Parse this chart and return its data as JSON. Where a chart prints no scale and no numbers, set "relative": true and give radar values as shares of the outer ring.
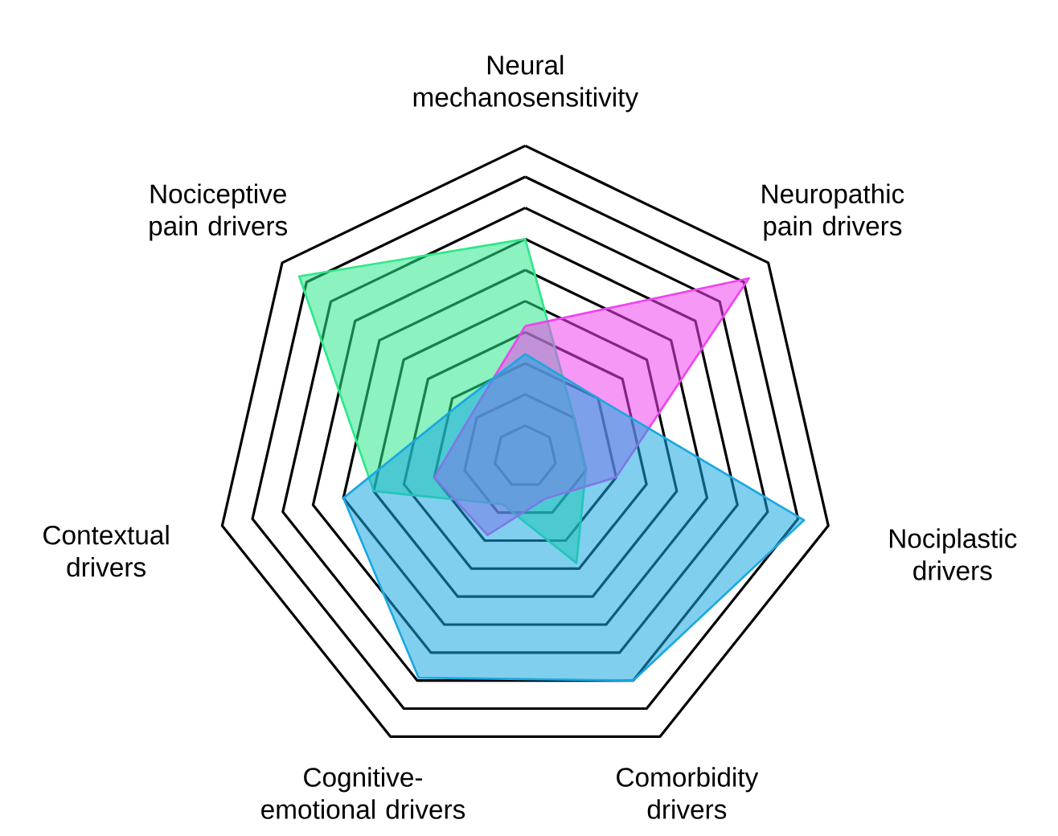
{
  "chart_data": {
    "type": "radar",
    "relative": true,
    "grid": true,
    "categories": [
      "Neural mechanosensitivity",
      "Neuropathic pain drivers",
      "Nociplastic drivers",
      "Comorbidity drivers",
      "Cognitive-emotional drivers",
      "Contextual drivers",
      "Nociceptive pain drivers"
    ],
    "series": [
      {
        "color": "#2ee88a",
        "values": [
          0.7,
          0.2,
          0.2,
          0.38,
          0.17,
          0.5,
          0.93
        ]
      },
      {
        "color": "#ee44ee",
        "values": [
          0.42,
          0.92,
          0.3,
          0.15,
          0.28,
          0.3,
          0.22
        ]
      },
      {
        "color": "#1aa8e0",
        "values": [
          0.33,
          0.3,
          0.92,
          0.8,
          0.79,
          0.6,
          0.27
        ]
      }
    ]
  }
}
